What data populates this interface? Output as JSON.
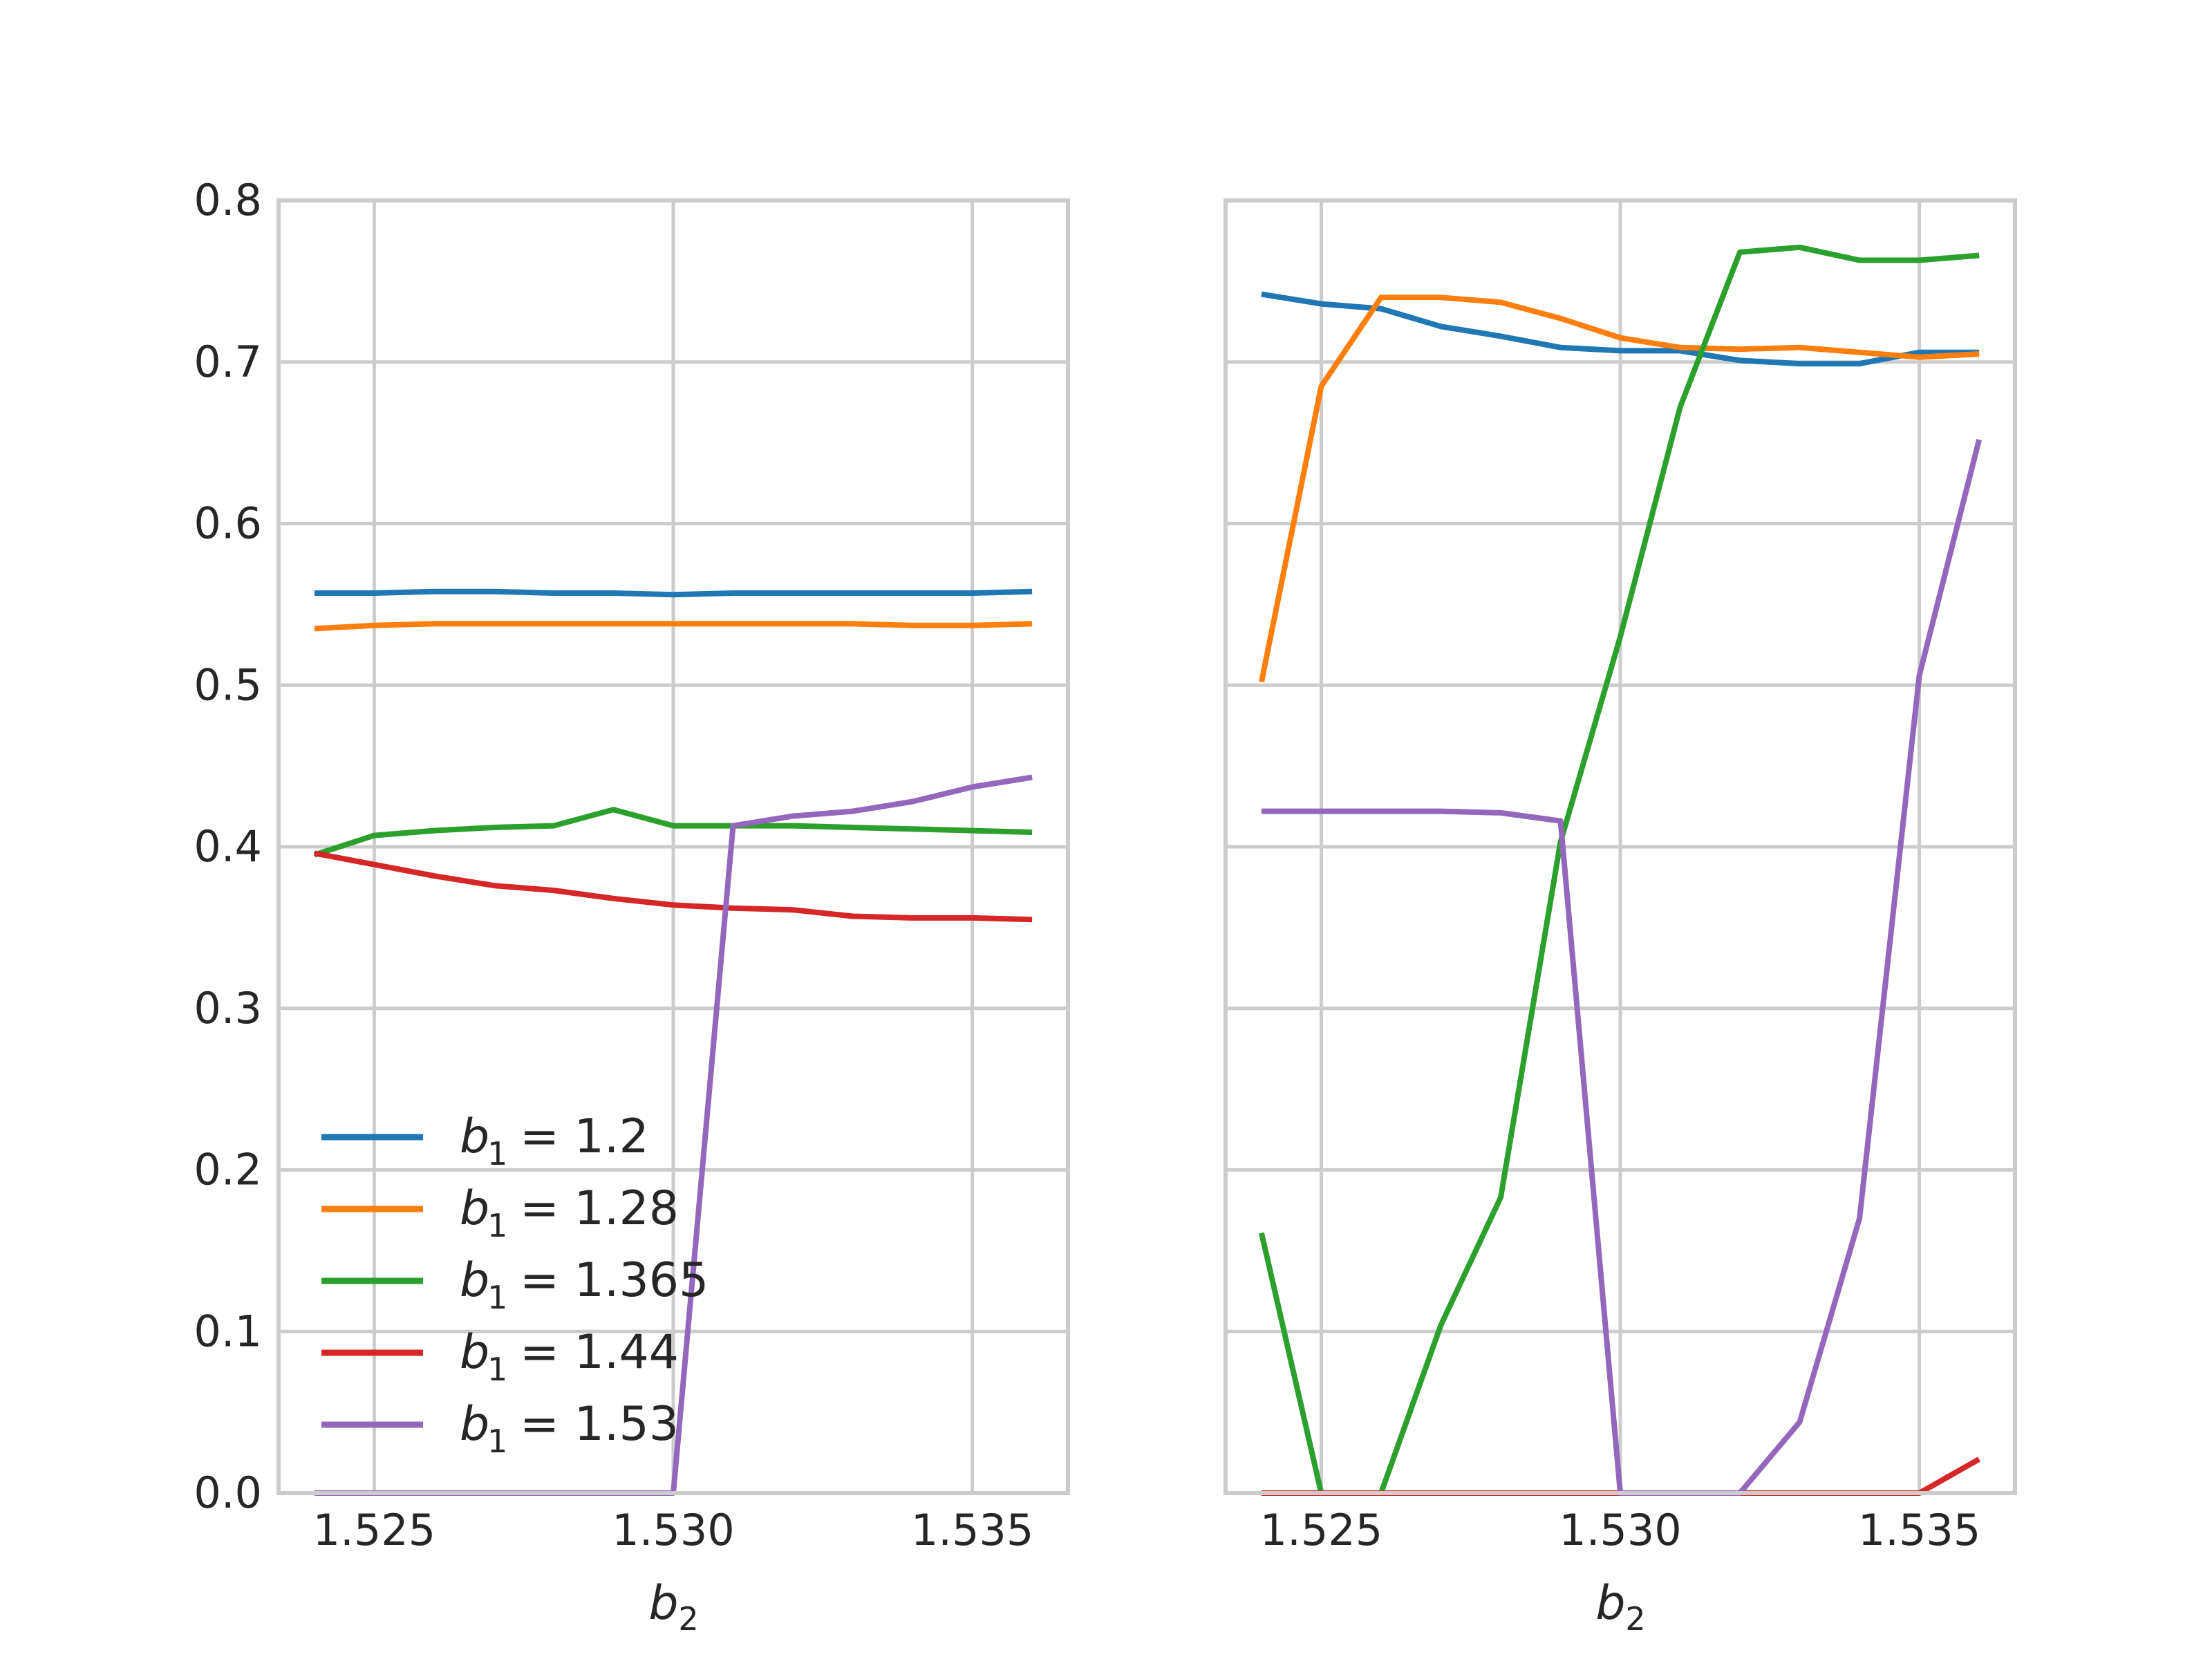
{
  "chart_data": [
    {
      "type": "line",
      "xlabel_var": "b",
      "xlabel_sub": "2",
      "xticks": [
        "1.525",
        "1.530",
        "1.535"
      ],
      "yticks": [
        "0.0",
        "0.1",
        "0.2",
        "0.3",
        "0.4",
        "0.5",
        "0.6",
        "0.7",
        "0.8"
      ],
      "xlim": [
        1.5234,
        1.5366
      ],
      "ylim": [
        0,
        0.8
      ],
      "grid": true,
      "legend_position": "lower-left",
      "x": [
        1.524,
        1.525,
        1.526,
        1.527,
        1.528,
        1.529,
        1.53,
        1.531,
        1.532,
        1.533,
        1.534,
        1.535,
        1.536
      ],
      "series": [
        {
          "name_var": "b",
          "name_sub": "1",
          "name_rest": "= 1.2",
          "color": "#1f77b4",
          "values": [
            0.557,
            0.557,
            0.558,
            0.558,
            0.557,
            0.557,
            0.556,
            0.557,
            0.557,
            0.557,
            0.557,
            0.557,
            0.558
          ]
        },
        {
          "name_var": "b",
          "name_sub": "1",
          "name_rest": "= 1.28",
          "color": "#ff7f0e",
          "values": [
            0.535,
            0.537,
            0.538,
            0.538,
            0.538,
            0.538,
            0.538,
            0.538,
            0.538,
            0.538,
            0.537,
            0.537,
            0.538
          ]
        },
        {
          "name_var": "b",
          "name_sub": "1",
          "name_rest": "= 1.365",
          "color": "#2ca02c",
          "values": [
            0.395,
            0.407,
            0.41,
            0.412,
            0.413,
            0.423,
            0.413,
            0.413,
            0.413,
            0.412,
            0.411,
            0.41,
            0.409
          ]
        },
        {
          "name_var": "b",
          "name_sub": "1",
          "name_rest": "= 1.44",
          "color": "#d62728",
          "values": [
            0.396,
            0.389,
            0.382,
            0.376,
            0.373,
            0.368,
            0.364,
            0.362,
            0.361,
            0.357,
            0.356,
            0.356,
            0.355
          ]
        },
        {
          "name_var": "b",
          "name_sub": "1",
          "name_rest": "= 1.53",
          "color": "#9467bd",
          "values": [
            0.0,
            0.0,
            0.0,
            0.0,
            0.0,
            0.0,
            0.0,
            0.413,
            0.419,
            0.422,
            0.428,
            0.437,
            0.443
          ]
        }
      ]
    },
    {
      "type": "line",
      "xlabel_var": "b",
      "xlabel_sub": "2",
      "xticks": [
        "1.525",
        "1.530",
        "1.535"
      ],
      "yticks": [],
      "xlim": [
        1.5234,
        1.5366
      ],
      "ylim": [
        0,
        0.8
      ],
      "grid": true,
      "x": [
        1.524,
        1.525,
        1.526,
        1.527,
        1.528,
        1.529,
        1.53,
        1.531,
        1.532,
        1.533,
        1.534,
        1.535,
        1.536
      ],
      "series": [
        {
          "name_var": "b",
          "name_sub": "1",
          "name_rest": "= 1.2",
          "color": "#1f77b4",
          "values": [
            0.742,
            0.736,
            0.733,
            0.722,
            0.716,
            0.709,
            0.707,
            0.707,
            0.701,
            0.699,
            0.699,
            0.706,
            0.706
          ]
        },
        {
          "name_var": "b",
          "name_sub": "1",
          "name_rest": "= 1.28",
          "color": "#ff7f0e",
          "values": [
            0.502,
            0.685,
            0.74,
            0.74,
            0.737,
            0.727,
            0.715,
            0.709,
            0.708,
            0.709,
            0.706,
            0.703,
            0.705
          ]
        },
        {
          "name_var": "b",
          "name_sub": "1",
          "name_rest": "= 1.365",
          "color": "#2ca02c",
          "values": [
            0.161,
            0.0,
            0.0,
            0.104,
            0.183,
            0.403,
            0.53,
            0.672,
            0.768,
            0.771,
            0.763,
            0.763,
            0.766
          ]
        },
        {
          "name_var": "b",
          "name_sub": "1",
          "name_rest": "= 1.44",
          "color": "#d62728",
          "values": [
            0.0,
            0.0,
            0.0,
            0.0,
            0.0,
            0.0,
            0.0,
            0.0,
            0.0,
            0.0,
            0.0,
            0.0,
            0.021
          ]
        },
        {
          "name_var": "b",
          "name_sub": "1",
          "name_rest": "= 1.53",
          "color": "#9467bd",
          "values": [
            0.422,
            0.422,
            0.422,
            0.422,
            0.421,
            0.416,
            0.0,
            0.0,
            0.0,
            0.044,
            0.17,
            0.506,
            0.652
          ]
        }
      ]
    }
  ]
}
